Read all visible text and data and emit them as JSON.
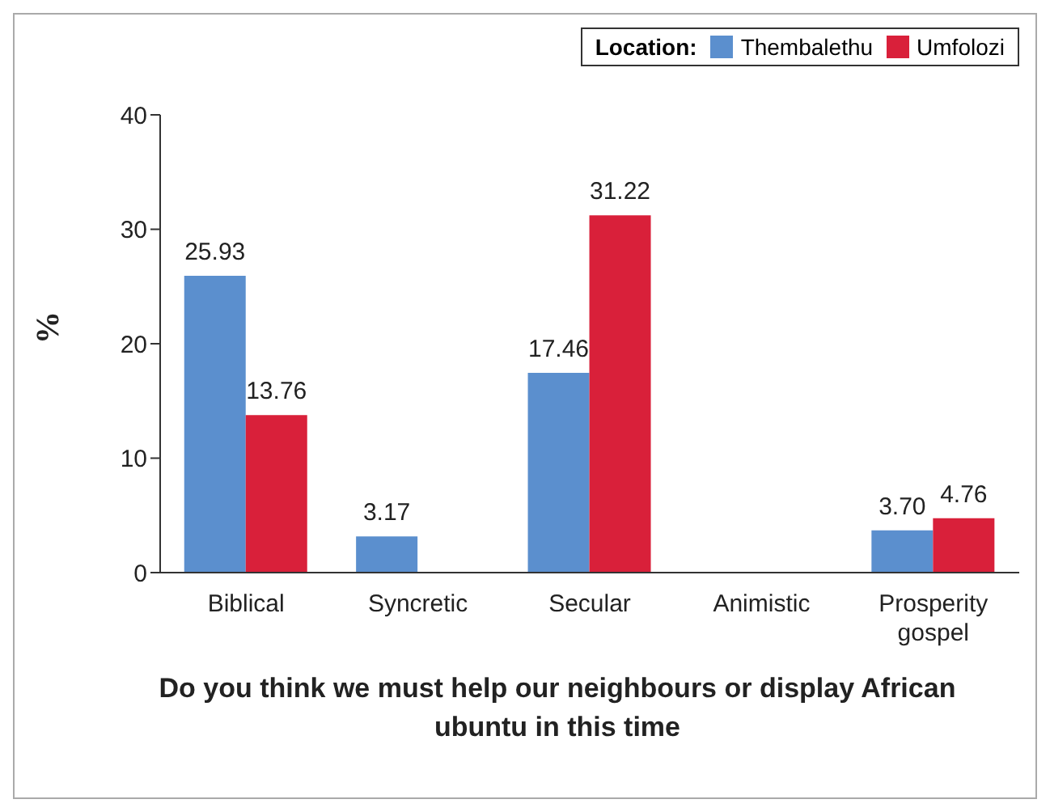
{
  "chart_data": {
    "type": "bar",
    "xlabel": "Do you think we must help our neighbours or display African ubuntu in this time",
    "ylabel": "%",
    "legend_title": "Location:",
    "categories": [
      "Biblical",
      "Syncretic",
      "Secular",
      "Animistic",
      "Prosperity gospel"
    ],
    "series": [
      {
        "name": "Thembalethu",
        "color": "#5b8fce",
        "values": [
          25.93,
          3.17,
          17.46,
          null,
          3.7
        ],
        "value_labels": [
          "25.93",
          "3.17",
          "17.46",
          null,
          "3.70"
        ]
      },
      {
        "name": "Umfolozi",
        "color": "#d9203a",
        "values": [
          13.76,
          null,
          31.22,
          null,
          4.76
        ],
        "value_labels": [
          "13.76",
          null,
          "31.22",
          null,
          "4.76"
        ]
      }
    ],
    "ylim": [
      0,
      40
    ],
    "yticks": [
      0,
      10,
      20,
      30,
      40
    ],
    "legend": "top right"
  }
}
